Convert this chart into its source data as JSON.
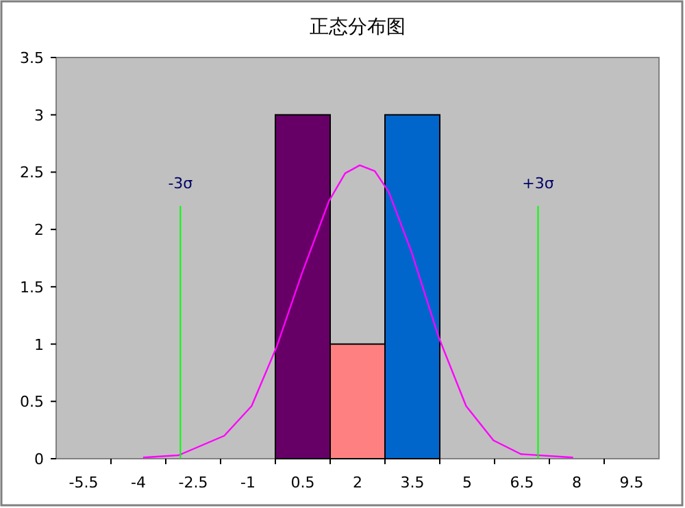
{
  "chart_data": {
    "type": "histogram",
    "title": "正态分布图",
    "bins": [
      -0.25,
      1.25,
      2.75,
      4.25
    ],
    "series": [
      {
        "values": [
          3,
          1,
          3
        ],
        "colors": [
          "#660066",
          "#ff8080",
          "#0066cc"
        ]
      },
      {
        "type": "line",
        "color": "#ff00ff",
        "x": [
          -3.87,
          -2.9,
          -1.65,
          -0.9,
          -0.21,
          0.47,
          1.22,
          1.66,
          2.06,
          2.47,
          2.85,
          3.47,
          4.22,
          4.97,
          5.72,
          6.47,
          7.9
        ],
        "values": [
          0.01,
          0.03,
          0.2,
          0.46,
          0.98,
          1.61,
          2.25,
          2.49,
          2.56,
          2.51,
          2.33,
          1.81,
          1.06,
          0.46,
          0.16,
          0.04,
          0.01
        ]
      }
    ],
    "xlim": [
      -6.25,
      10.25
    ],
    "xticks": [
      -5.5,
      -4,
      -2.5,
      -1,
      0.5,
      2,
      3.5,
      5,
      6.5,
      8,
      9.5,
      {
        "value": -4.75,
        "label": null
      },
      {
        "value": -3.25,
        "label": null
      },
      {
        "value": -1.75,
        "label": null
      },
      {
        "value": -0.25,
        "label": null
      },
      {
        "value": 1.25,
        "label": null
      },
      {
        "value": 2.75,
        "label": null
      },
      {
        "value": 4.25,
        "label": null
      },
      {
        "value": 5.75,
        "label": null
      },
      {
        "value": 7.25,
        "label": null
      },
      {
        "value": 8.75,
        "label": null
      }
    ],
    "ylim": [
      0,
      3.5
    ],
    "yticks": [
      0,
      0.5,
      1,
      1.5,
      2,
      2.5,
      3,
      3.5
    ],
    "ref_lines": [
      {
        "axis": "x",
        "value": -2.85,
        "label": "-3σ",
        "color": "#00ff00"
      },
      {
        "axis": "x",
        "value": 6.94,
        "label": "+3σ",
        "color": "#00ff00"
      }
    ]
  }
}
